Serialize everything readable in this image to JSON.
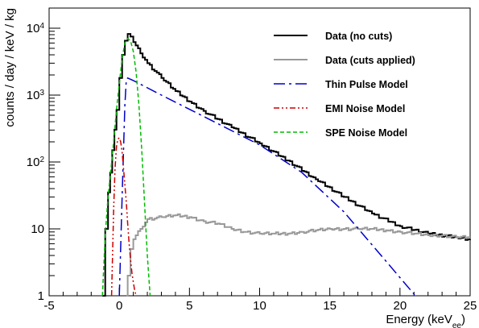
{
  "chart_data": {
    "type": "line",
    "ylabel": "counts / day / keV / kg",
    "xlabel": {
      "main": "Energy (keV",
      "sub": "ee",
      "close": ")"
    },
    "xlim": [
      -5,
      25
    ],
    "ylim": [
      1,
      20000
    ],
    "yscale": "log",
    "x_ticks": [
      "-5",
      "0",
      "5",
      "10",
      "15",
      "20",
      "25"
    ],
    "y_ticks": [
      {
        "value": 1,
        "label": "1"
      },
      {
        "value": 10,
        "label": "10"
      },
      {
        "value": 100,
        "label": "10",
        "exp": "2"
      },
      {
        "value": 1000,
        "label": "10",
        "exp": "3"
      },
      {
        "value": 10000,
        "label": "10",
        "exp": "4"
      }
    ],
    "legend_position": "top-right",
    "series": [
      {
        "name": "Data (no cuts)",
        "color": "#000000",
        "style": "solid",
        "width": 2,
        "x": [
          -1.2,
          -1.0,
          -0.8,
          -0.5,
          -0.2,
          0.0,
          0.2,
          0.4,
          0.6,
          0.8,
          1.0,
          1.5,
          2.0,
          3.0,
          4.0,
          5.0,
          6.0,
          8.0,
          10.0,
          12.0,
          14.0,
          16.0,
          18.0,
          20.0,
          22.0,
          24.0,
          25.0
        ],
        "y": [
          1.0,
          10,
          35,
          150,
          600,
          1800,
          4000,
          6500,
          8200,
          7500,
          6200,
          4200,
          3000,
          1800,
          1150,
          800,
          580,
          330,
          190,
          105,
          55,
          30,
          17,
          11,
          8.5,
          7.5,
          7.0
        ]
      },
      {
        "name": "Data (cuts applied)",
        "color": "#999999",
        "style": "solid",
        "width": 2,
        "x": [
          0.5,
          0.6,
          0.8,
          1.0,
          1.5,
          2.0,
          3.0,
          4.0,
          5.0,
          6.0,
          7.0,
          8.0,
          9.0,
          10.0,
          11.0,
          12.0,
          13.0,
          14.0,
          15.0,
          16.0,
          17.0,
          18.0,
          19.0,
          20.0,
          21.0,
          22.0,
          23.0,
          24.0,
          25.0
        ],
        "y": [
          1.0,
          2.0,
          5.0,
          7.0,
          10,
          14,
          15,
          16,
          15,
          13,
          12,
          10,
          9,
          8.5,
          8.5,
          8.5,
          9,
          9.5,
          10,
          10,
          10,
          10,
          9.5,
          9,
          8.5,
          8,
          8,
          7.5,
          7.5
        ]
      },
      {
        "name": "Thin Pulse Model",
        "color": "#0000cc",
        "style": "dashdot-long",
        "width": 1.5,
        "x": [
          0.0,
          0.2,
          0.4,
          0.5,
          0.6,
          1.0,
          3.0,
          6.0,
          10.0,
          13.0,
          16.0,
          19.0,
          21.1
        ],
        "y": [
          1.0,
          30,
          700,
          1700,
          1800,
          1650,
          1000,
          480,
          180,
          70,
          18,
          3.3,
          1.0
        ]
      },
      {
        "name": "EMI Noise Model",
        "color": "#cc0000",
        "style": "dashdotdot",
        "width": 1.5,
        "x": [
          -0.55,
          -0.4,
          -0.3,
          -0.2,
          -0.1,
          0.0,
          0.1,
          0.2,
          0.35,
          0.5,
          0.6,
          0.7,
          0.8,
          0.9,
          1.0,
          1.1,
          1.2
        ],
        "y": [
          1.0,
          20,
          80,
          170,
          220,
          230,
          200,
          140,
          60,
          25,
          12,
          6,
          3.5,
          2.2,
          1.6,
          1.2,
          1.0
        ]
      },
      {
        "name": "SPE Noise Model",
        "color": "#00bb00",
        "style": "dashed",
        "width": 1.5,
        "x": [
          -1.2,
          -1.0,
          -0.8,
          -0.5,
          -0.2,
          0.0,
          0.2,
          0.4,
          0.6,
          0.8,
          1.0,
          1.2,
          1.4,
          1.6,
          1.8,
          2.0,
          2.2
        ],
        "y": [
          1.0,
          8,
          30,
          120,
          600,
          1500,
          3500,
          6000,
          7000,
          6500,
          4500,
          2200,
          700,
          150,
          25,
          4,
          1.0
        ]
      }
    ]
  }
}
